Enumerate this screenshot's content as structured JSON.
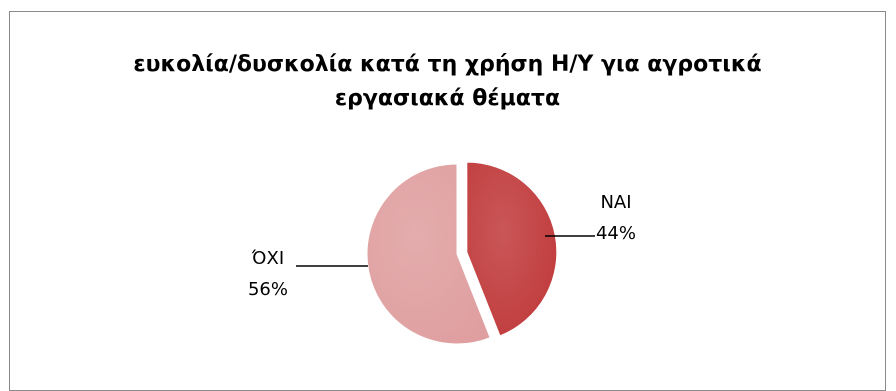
{
  "chart_data": {
    "type": "pie",
    "title_lines": [
      "ευκολία/δυσκολία κατά τη χρήση Η/Υ για αγροτικά",
      "εργασιακά θέματα"
    ],
    "slices": [
      {
        "name": "ΝΑΙ",
        "value": 44,
        "label": "44%",
        "color": "#c0393a"
      },
      {
        "name": "ΌΧΙ",
        "value": 56,
        "label": "56%",
        "color": "#df9e9f"
      }
    ],
    "legend": "none"
  }
}
